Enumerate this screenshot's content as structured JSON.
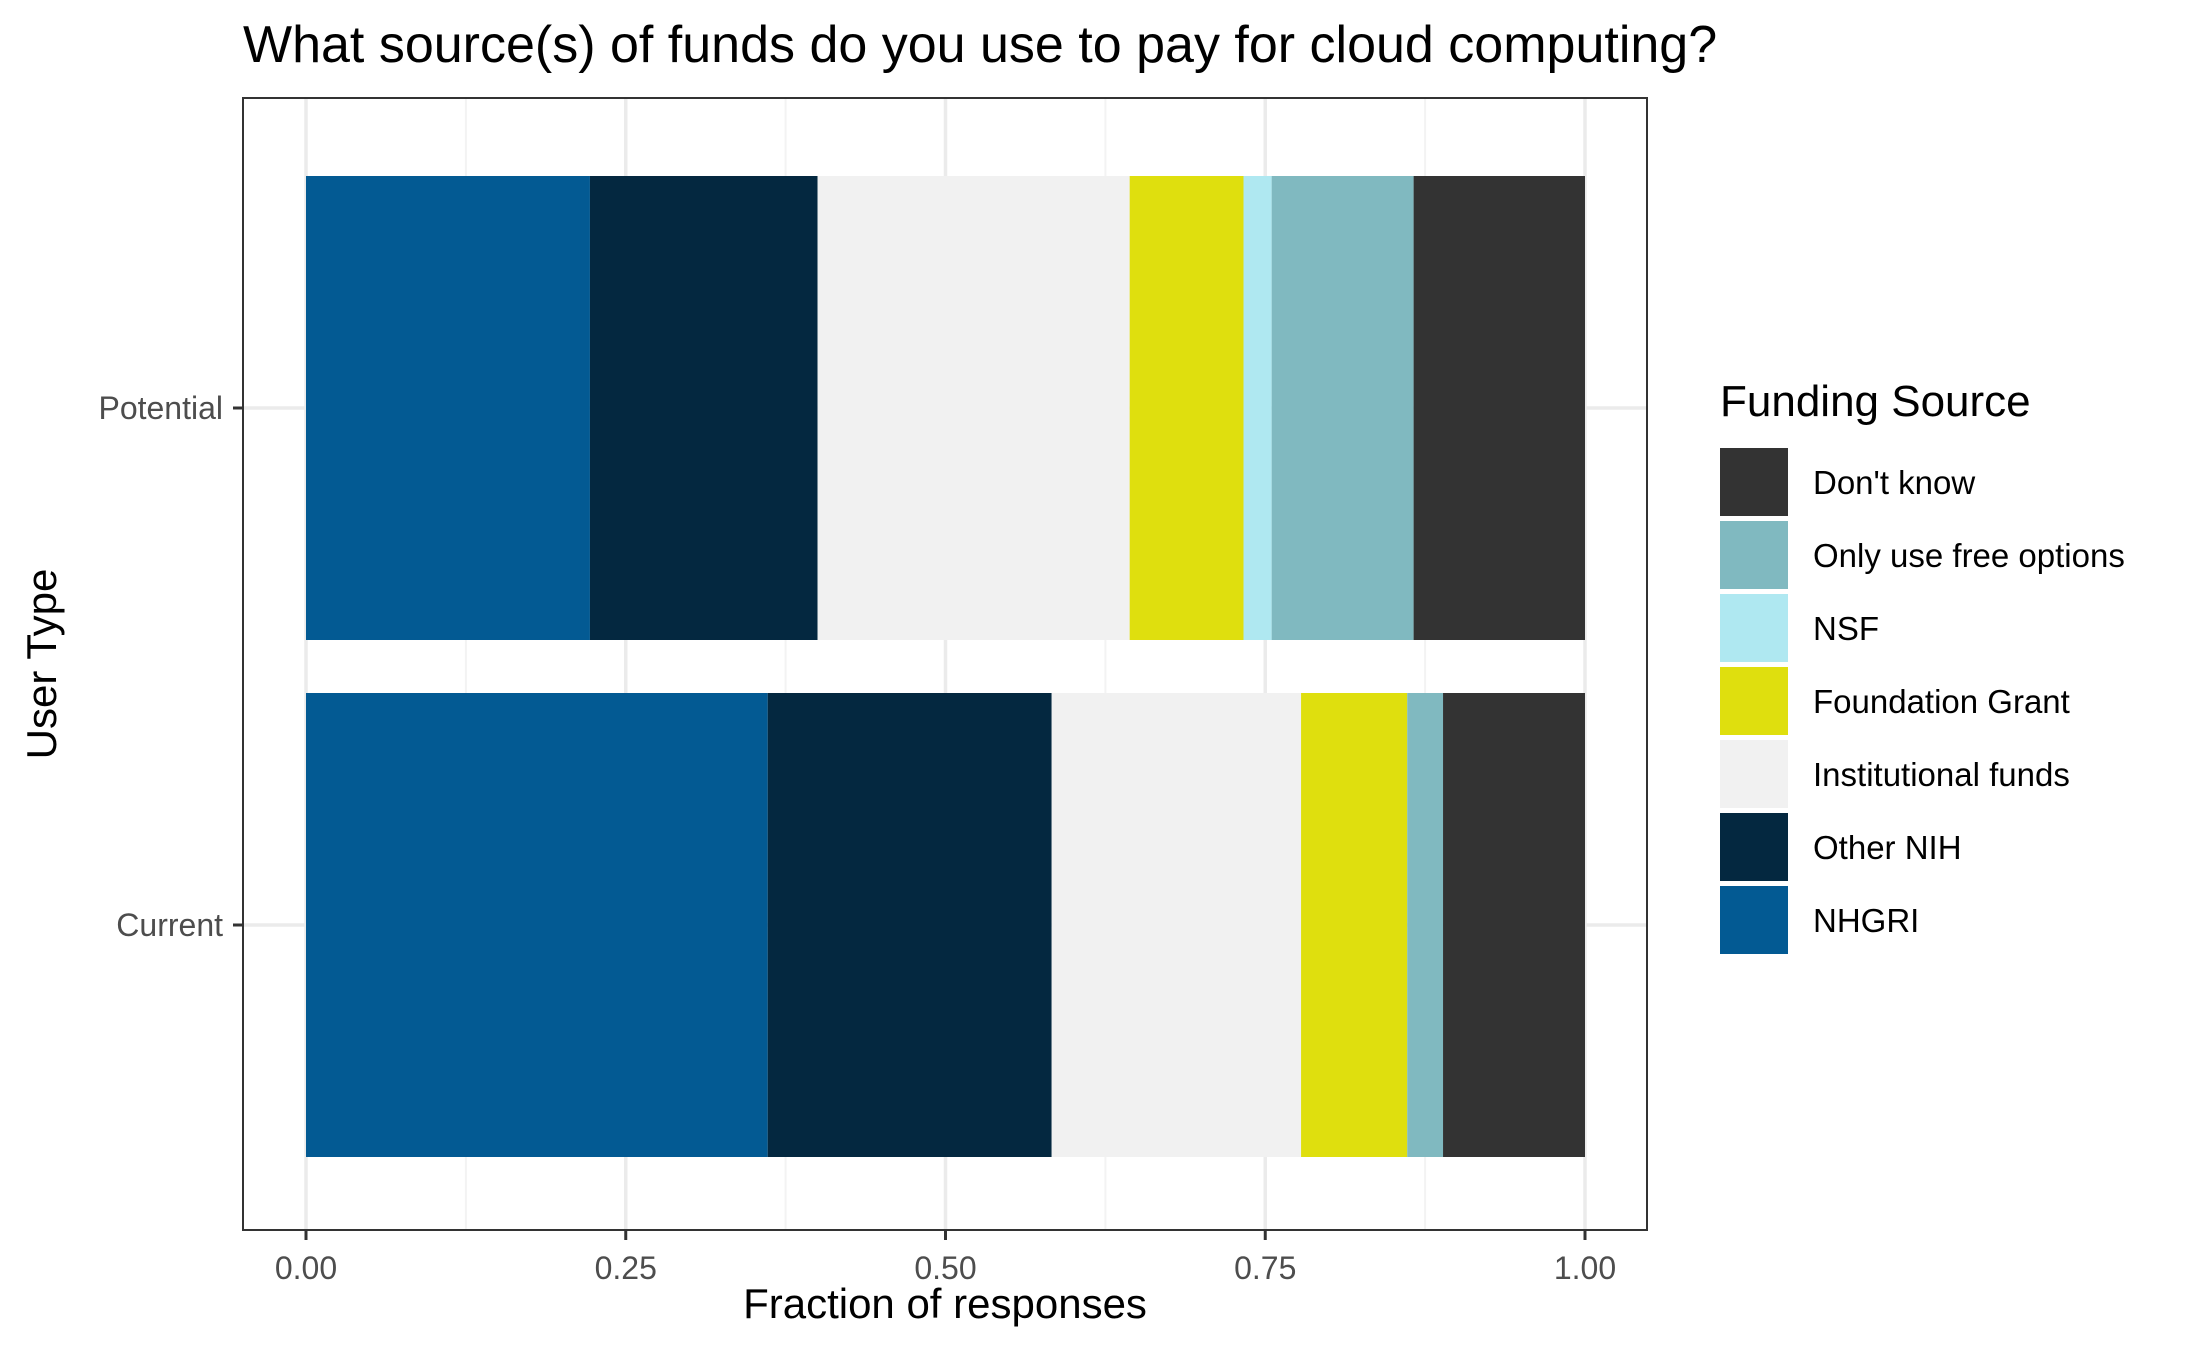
{
  "chart_data": {
    "type": "bar",
    "orientation": "horizontal",
    "stacked": true,
    "title": "What source(s) of funds do you use to pay for cloud computing?",
    "xlabel": "Fraction of responses",
    "ylabel": "User Type",
    "xlim": [
      0,
      1
    ],
    "x_ticks": [
      "0.00",
      "0.25",
      "0.50",
      "0.75",
      "1.00"
    ],
    "categories": [
      "Current",
      "Potential"
    ],
    "legend_title": "Funding Source",
    "legend_position": "right",
    "grid": true,
    "series": [
      {
        "name": "NHGRI",
        "color": "#035a93",
        "values": [
          0.361,
          0.222
        ]
      },
      {
        "name": "Other NIH",
        "color": "#042840",
        "values": [
          0.222,
          0.178
        ]
      },
      {
        "name": "Institutional funds",
        "color": "#f1f1f1",
        "values": [
          0.195,
          0.244
        ]
      },
      {
        "name": "Foundation Grant",
        "color": "#dfdf0e",
        "values": [
          0.083,
          0.089
        ]
      },
      {
        "name": "NSF",
        "color": "#afe8f1",
        "values": [
          0.0,
          0.022
        ]
      },
      {
        "name": "Only use free options",
        "color": "#80b9c0",
        "values": [
          0.028,
          0.111
        ]
      },
      {
        "name": "Don't know",
        "color": "#333333",
        "values": [
          0.111,
          0.134
        ]
      }
    ],
    "legend_order": [
      "Don't know",
      "Only use free options",
      "NSF",
      "Foundation Grant",
      "Institutional funds",
      "Other NIH",
      "NHGRI"
    ]
  }
}
